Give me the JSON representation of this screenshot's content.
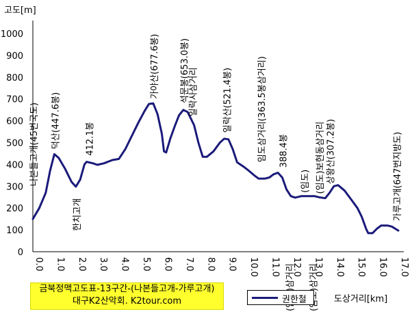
{
  "chart_data": {
    "type": "line",
    "ylabel": "고도[m]",
    "xlabel": "도상거리[km]",
    "ylim": [
      0,
      1000
    ],
    "xlim": [
      0,
      17
    ],
    "yticks": [
      "1000",
      "900",
      "800",
      "700",
      "600",
      "500",
      "400",
      "300",
      "200",
      "100",
      "0"
    ],
    "xticks": [
      "0.0",
      "1.0",
      "2.0",
      "3.0",
      "4.0",
      "5.0",
      "6.0",
      "7.0",
      "8.0",
      "9.0",
      "10.0",
      "11.0",
      "12.0",
      "13.0",
      "14.0",
      "15.0",
      "16.0",
      "17.0"
    ],
    "grid": false,
    "series": [
      {
        "name": "권한철",
        "color": "#1a1a7a",
        "points": [
          [
            0.0,
            150
          ],
          [
            0.3,
            200
          ],
          [
            0.6,
            270
          ],
          [
            0.8,
            370
          ],
          [
            1.0,
            447
          ],
          [
            1.2,
            430
          ],
          [
            1.5,
            380
          ],
          [
            1.8,
            320
          ],
          [
            2.0,
            298
          ],
          [
            2.2,
            330
          ],
          [
            2.4,
            400
          ],
          [
            2.5,
            412
          ],
          [
            2.8,
            405
          ],
          [
            3.0,
            398
          ],
          [
            3.3,
            405
          ],
          [
            3.7,
            420
          ],
          [
            4.0,
            425
          ],
          [
            4.3,
            470
          ],
          [
            4.6,
            530
          ],
          [
            4.9,
            590
          ],
          [
            5.2,
            645
          ],
          [
            5.4,
            677
          ],
          [
            5.6,
            680
          ],
          [
            5.8,
            630
          ],
          [
            6.0,
            540
          ],
          [
            6.1,
            460
          ],
          [
            6.2,
            455
          ],
          [
            6.4,
            520
          ],
          [
            6.6,
            575
          ],
          [
            6.8,
            625
          ],
          [
            7.0,
            650
          ],
          [
            7.2,
            640
          ],
          [
            7.5,
            580
          ],
          [
            7.7,
            500
          ],
          [
            7.9,
            435
          ],
          [
            8.1,
            435
          ],
          [
            8.4,
            460
          ],
          [
            8.7,
            500
          ],
          [
            8.9,
            518
          ],
          [
            9.1,
            515
          ],
          [
            9.3,
            470
          ],
          [
            9.5,
            410
          ],
          [
            9.8,
            390
          ],
          [
            10.0,
            375
          ],
          [
            10.3,
            350
          ],
          [
            10.5,
            335
          ],
          [
            10.8,
            335
          ],
          [
            11.0,
            340
          ],
          [
            11.2,
            355
          ],
          [
            11.4,
            362
          ],
          [
            11.6,
            340
          ],
          [
            11.8,
            285
          ],
          [
            12.0,
            255
          ],
          [
            12.2,
            248
          ],
          [
            12.5,
            255
          ],
          [
            12.8,
            255
          ],
          [
            13.1,
            255
          ],
          [
            13.3,
            250
          ],
          [
            13.6,
            245
          ],
          [
            13.8,
            270
          ],
          [
            14.0,
            300
          ],
          [
            14.2,
            305
          ],
          [
            14.5,
            280
          ],
          [
            14.8,
            240
          ],
          [
            15.1,
            200
          ],
          [
            15.3,
            160
          ],
          [
            15.5,
            105
          ],
          [
            15.6,
            85
          ],
          [
            15.8,
            85
          ],
          [
            16.0,
            105
          ],
          [
            16.2,
            120
          ],
          [
            16.5,
            120
          ],
          [
            16.7,
            115
          ],
          [
            17.0,
            97
          ]
        ]
      }
    ],
    "annotations": [
      {
        "text": "나본들고개(45번국도)",
        "x": 0.0,
        "y": 300
      },
      {
        "text": "덕산(447.6봉)",
        "x": 1.0,
        "y": 470
      },
      {
        "text": "한치고개",
        "x": 2.0,
        "y": 95
      },
      {
        "text": "412.1봉",
        "x": 2.6,
        "y": 440
      },
      {
        "text": "가야산(677.6봉)",
        "x": 5.6,
        "y": 700
      },
      {
        "text": "석문봉(653.0봉)",
        "x": 7.0,
        "y": 680
      },
      {
        "text": "일락사삼거리",
        "x": 7.4,
        "y": 620
      },
      {
        "text": "일락산(521.4봉)",
        "x": 9.0,
        "y": 545
      },
      {
        "text": "임도삼거리(363.5봉삼거리)",
        "x": 10.6,
        "y": 410
      },
      {
        "text": "388.4봉",
        "x": 11.6,
        "y": 385
      },
      {
        "text": "(임도)삼거리",
        "x": 11.9,
        "y": -10
      },
      {
        "text": "(임도)삼거리",
        "x": 13.0,
        "y": -10
      },
      {
        "text": "(임도)",
        "x": 12.6,
        "y": 270
      },
      {
        "text": "(임도)보현동삼거리",
        "x": 13.3,
        "y": 265
      },
      {
        "text": "상왕산(307.2봉)",
        "x": 13.8,
        "y": 310
      },
      {
        "text": "가루고개(647번지방도)",
        "x": 16.9,
        "y": 140
      }
    ],
    "caption": [
      "금북정맥고도표-13구간-(나본들고개-가루고개)",
      "대구K2산악회. K2tour.com"
    ]
  }
}
